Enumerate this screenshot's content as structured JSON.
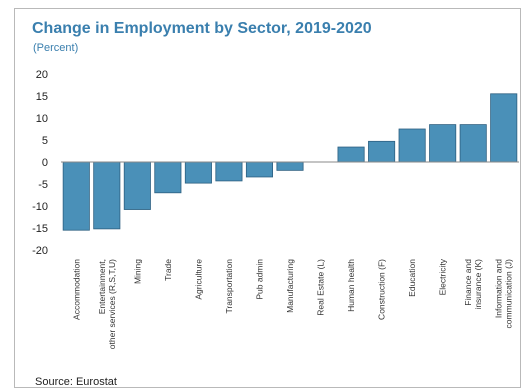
{
  "chart_data": {
    "type": "bar",
    "title": "Change in Employment by Sector, 2019-2020",
    "subtitle": "(Percent)",
    "source": "Source: Eurostat",
    "ylim": [
      -20,
      20
    ],
    "yticks": [
      20,
      15,
      10,
      5,
      0,
      -5,
      -10,
      -15,
      -20
    ],
    "grid": false,
    "bar_color": "#4a90b8",
    "categories": [
      [
        "Accommodation"
      ],
      [
        "Entertainment,",
        "other services (R,S,T,U)"
      ],
      [
        "Mining"
      ],
      [
        "Trade"
      ],
      [
        "Agriculture"
      ],
      [
        "Transportation"
      ],
      [
        "Pub admin"
      ],
      [
        "Manufacturing"
      ],
      [
        "Real Estate (L)"
      ],
      [
        "Human health"
      ],
      [
        "Construction (F)"
      ],
      [
        "Education"
      ],
      [
        "Electricity"
      ],
      [
        "Finance and",
        "insurance (K)"
      ],
      [
        "Information and",
        "communication (J)"
      ]
    ],
    "values": [
      -15.5,
      -15.2,
      -10.8,
      -7.0,
      -4.8,
      -4.3,
      -3.4,
      -1.9,
      0.0,
      3.4,
      4.7,
      7.5,
      8.5,
      8.5,
      15.5
    ]
  }
}
